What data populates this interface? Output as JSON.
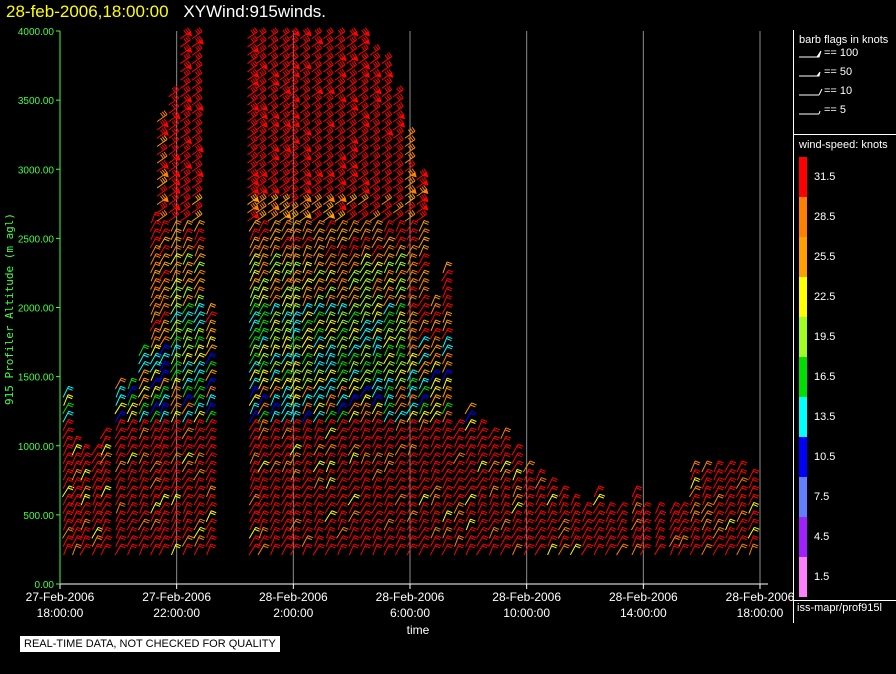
{
  "header": {
    "datetime": "28-feb-2006,18:00:00",
    "product": "XYWind:915winds."
  },
  "chart_data": {
    "type": "wind-barb profile",
    "ylabel": "915 Profiler Altitude (m agl)",
    "xlabel": "time",
    "ylim": [
      0,
      4000
    ],
    "y_ticks": [
      "0.00",
      "500.00",
      "1000.00",
      "1500.00",
      "2000.00",
      "2500.00",
      "3000.00",
      "3500.00",
      "4000.00"
    ],
    "x_ticks": [
      {
        "line1": "27-Feb-2006",
        "line2": "18:00:00"
      },
      {
        "line1": "27-Feb-2006",
        "line2": "22:00:00"
      },
      {
        "line1": "28-Feb-2006",
        "line2": "2:00:00"
      },
      {
        "line1": "28-Feb-2006",
        "line2": "6:00:00"
      },
      {
        "line1": "28-Feb-2006",
        "line2": "10:00:00"
      },
      {
        "line1": "28-Feb-2006",
        "line2": "14:00:00"
      },
      {
        "line1": "28-Feb-2006",
        "line2": "18:00:00"
      }
    ],
    "x_range_hours": [
      0,
      24
    ],
    "grid": "vertical lines at each labelled time",
    "profiles": [
      {
        "t": 0.2,
        "top": 1400
      },
      {
        "t": 0.5,
        "top": 1050
      },
      {
        "t": 0.8,
        "top": 1000
      },
      {
        "t": 1.2,
        "top": 1000
      },
      {
        "t": 1.5,
        "top": 1100
      },
      {
        "t": 2.0,
        "top": 1450
      },
      {
        "t": 2.4,
        "top": 1500
      },
      {
        "t": 2.8,
        "top": 1700
      },
      {
        "t": 3.2,
        "top": 2700
      },
      {
        "t": 3.5,
        "top": 3400
      },
      {
        "t": 3.9,
        "top": 3600
      },
      {
        "t": 4.3,
        "top": 4000
      },
      {
        "t": 4.7,
        "top": 4000
      },
      {
        "t": 5.1,
        "top": 2000
      },
      {
        "t": 6.6,
        "top": 4000
      },
      {
        "t": 6.9,
        "top": 4000
      },
      {
        "t": 7.3,
        "top": 4000
      },
      {
        "t": 7.7,
        "top": 4000
      },
      {
        "t": 8.0,
        "top": 4000
      },
      {
        "t": 8.4,
        "top": 4000
      },
      {
        "t": 8.8,
        "top": 4000
      },
      {
        "t": 9.2,
        "top": 4000
      },
      {
        "t": 9.6,
        "top": 4000
      },
      {
        "t": 10.0,
        "top": 4000
      },
      {
        "t": 10.4,
        "top": 4000
      },
      {
        "t": 10.8,
        "top": 3900
      },
      {
        "t": 11.2,
        "top": 3800
      },
      {
        "t": 11.6,
        "top": 3600
      },
      {
        "t": 12.0,
        "top": 3300
      },
      {
        "t": 12.4,
        "top": 3000
      },
      {
        "t": 12.8,
        "top": 2100
      },
      {
        "t": 13.2,
        "top": 2300
      },
      {
        "t": 13.6,
        "top": 1200
      },
      {
        "t": 14.0,
        "top": 1300
      },
      {
        "t": 14.4,
        "top": 1200
      },
      {
        "t": 14.8,
        "top": 1100
      },
      {
        "t": 15.2,
        "top": 1100
      },
      {
        "t": 15.6,
        "top": 1000
      },
      {
        "t": 16.0,
        "top": 900
      },
      {
        "t": 16.4,
        "top": 800
      },
      {
        "t": 16.8,
        "top": 750
      },
      {
        "t": 17.2,
        "top": 700
      },
      {
        "t": 17.6,
        "top": 650
      },
      {
        "t": 18.0,
        "top": 600
      },
      {
        "t": 18.4,
        "top": 700
      },
      {
        "t": 18.8,
        "top": 550
      },
      {
        "t": 19.2,
        "top": 600
      },
      {
        "t": 19.7,
        "top": 700
      },
      {
        "t": 20.0,
        "top": 600
      },
      {
        "t": 20.5,
        "top": 550
      },
      {
        "t": 21.0,
        "top": 600
      },
      {
        "t": 21.3,
        "top": 550
      },
      {
        "t": 21.7,
        "top": 850
      },
      {
        "t": 22.1,
        "top": 900
      },
      {
        "t": 22.5,
        "top": 900
      },
      {
        "t": 22.9,
        "top": 850
      },
      {
        "t": 23.3,
        "top": 850
      },
      {
        "t": 23.7,
        "top": 800
      }
    ],
    "speed_levels": [
      {
        "label": "31.5",
        "color": "#ff0000"
      },
      {
        "label": "28.5",
        "color": "#ff8000"
      },
      {
        "label": "25.5",
        "color": "#ffa000"
      },
      {
        "label": "22.5",
        "color": "#ffff00"
      },
      {
        "label": "19.5",
        "color": "#a0ff20"
      },
      {
        "label": "16.5",
        "color": "#00e000"
      },
      {
        "label": "13.5",
        "color": "#00ffff"
      },
      {
        "label": "10.5",
        "color": "#0000ff"
      },
      {
        "label": "7.5",
        "color": "#6080ff"
      },
      {
        "label": "4.5",
        "color": "#a020ff"
      },
      {
        "label": "1.5",
        "color": "#ff80ff"
      }
    ]
  },
  "legend": {
    "flags_title": "barb flags in knots",
    "flags": [
      {
        "label": "== 100",
        "kind": "pennant"
      },
      {
        "label": "== 50",
        "kind": "pennant-small"
      },
      {
        "label": "== 10",
        "kind": "full"
      },
      {
        "label": "== 5",
        "kind": "half"
      }
    ],
    "speed_title": "wind-speed: knots",
    "footer_path": "iss-mapr/prof915l",
    "notice": "REAL-TIME DATA, NOT CHECKED FOR QUALITY"
  }
}
